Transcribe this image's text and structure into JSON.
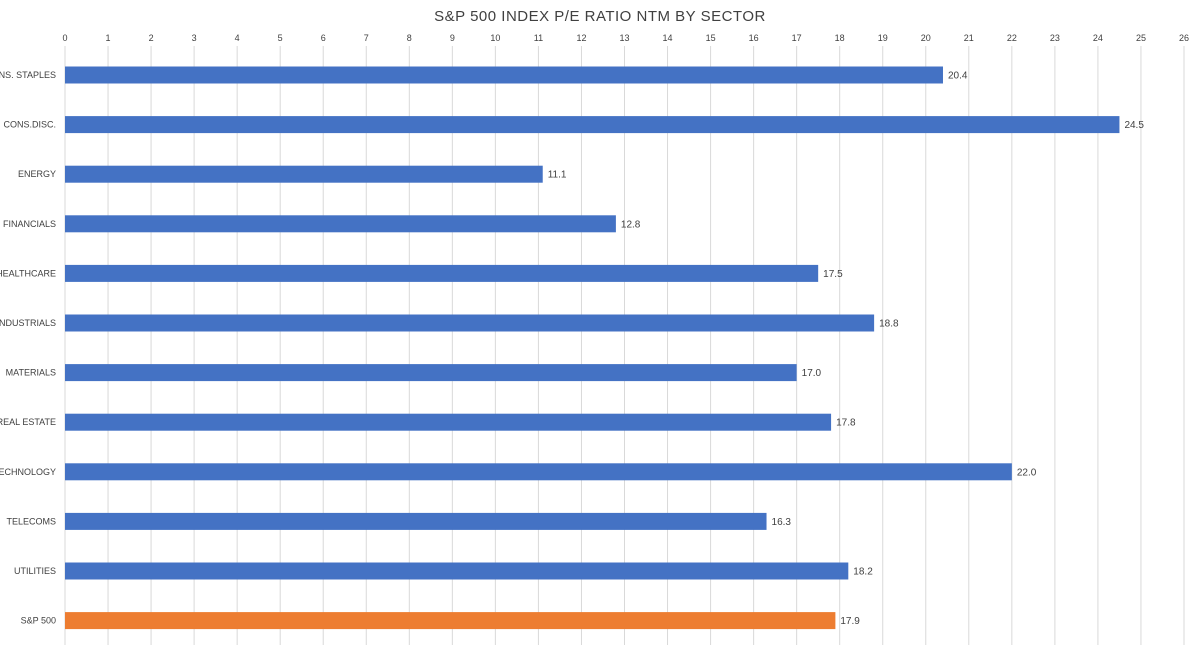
{
  "chart_data": {
    "type": "bar",
    "orientation": "horizontal",
    "title": "S&P 500 INDEX P/E RATIO NTM BY SECTOR",
    "categories": [
      "CONS. STAPLES",
      "CONS.DISC.",
      "ENERGY",
      "FINANCIALS",
      "HEALTHCARE",
      "INDUSTRIALS",
      "MATERIALS",
      "REAL ESTATE",
      "TECHNOLOGY",
      "TELECOMS",
      "UTILITIES",
      "S&P 500"
    ],
    "values": [
      20.4,
      24.5,
      11.1,
      12.8,
      17.5,
      18.8,
      17.0,
      17.8,
      22.0,
      16.3,
      18.2,
      17.9
    ],
    "value_labels": [
      "20.4",
      "24.5",
      "11.1",
      "12.8",
      "17.5",
      "18.8",
      "17.0",
      "17.8",
      "22.0",
      "16.3",
      "18.2",
      "17.9"
    ],
    "bar_colors": [
      "#4472c4",
      "#4472c4",
      "#4472c4",
      "#4472c4",
      "#4472c4",
      "#4472c4",
      "#4472c4",
      "#4472c4",
      "#4472c4",
      "#4472c4",
      "#4472c4",
      "#ed7d31"
    ],
    "xlim": [
      0,
      26
    ],
    "xticks": [
      "0",
      "1",
      "2",
      "3",
      "4",
      "5",
      "6",
      "7",
      "8",
      "9",
      "10",
      "11",
      "12",
      "13",
      "14",
      "15",
      "16",
      "17",
      "18",
      "19",
      "20",
      "21",
      "22",
      "23",
      "24",
      "25",
      "26"
    ],
    "x_axis_position": "top",
    "grid": true,
    "grid_color": "#d9d9d9",
    "text_color": "#404040",
    "xlabel": "",
    "ylabel": ""
  }
}
